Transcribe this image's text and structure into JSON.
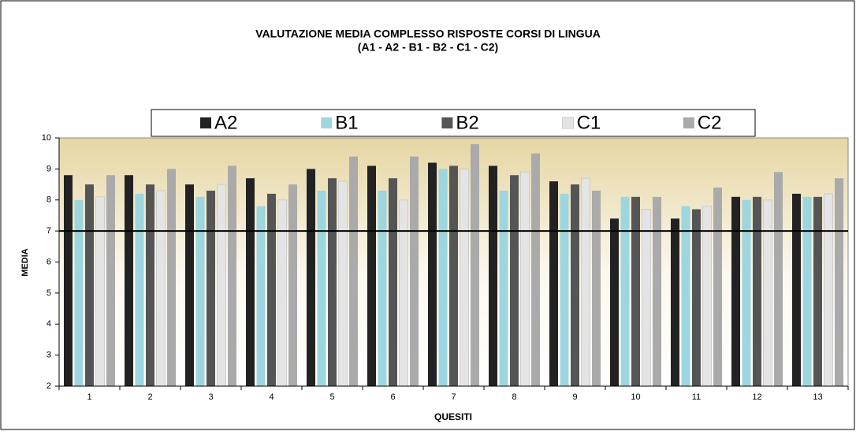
{
  "chart_data": {
    "type": "bar",
    "title": "VALUTAZIONE MEDIA COMPLESSO RISPOSTE CORSI DI LINGUA",
    "subtitle": "(A1   - A2 - B1 - B2 - C1 - C2)",
    "y_label": "MEDIA",
    "x_label": "QUESITI",
    "categories": [
      "1",
      "2",
      "3",
      "4",
      "5",
      "6",
      "7",
      "8",
      "9",
      "10",
      "11",
      "12",
      "13"
    ],
    "series": [
      {
        "name": "A2",
        "color": "#222222",
        "values": [
          8.8,
          8.8,
          8.5,
          8.7,
          9.0,
          9.1,
          9.2,
          9.1,
          8.6,
          7.4,
          7.4,
          8.1,
          8.2
        ]
      },
      {
        "name": "B1",
        "color": "#9dd6de",
        "values": [
          8.0,
          8.2,
          8.1,
          7.8,
          8.3,
          8.3,
          9.0,
          8.3,
          8.2,
          8.1,
          7.8,
          8.0,
          8.1
        ]
      },
      {
        "name": "B2",
        "color": "#555555",
        "values": [
          8.5,
          8.5,
          8.3,
          8.2,
          8.7,
          8.7,
          9.1,
          8.8,
          8.5,
          8.1,
          7.7,
          8.1,
          8.1
        ]
      },
      {
        "name": "C1",
        "color": "#e4e4e4",
        "values": [
          8.1,
          8.3,
          8.5,
          8.0,
          8.6,
          8.0,
          9.0,
          8.9,
          8.7,
          7.7,
          7.8,
          8.0,
          8.2
        ]
      },
      {
        "name": "C2",
        "color": "#aaaaaa",
        "values": [
          8.8,
          9.0,
          9.1,
          8.5,
          9.4,
          9.4,
          9.8,
          9.5,
          8.3,
          8.1,
          8.4,
          8.9,
          8.7
        ]
      }
    ],
    "ylim": [
      2,
      10
    ],
    "yticks": [
      2,
      3,
      4,
      5,
      6,
      7,
      8,
      9,
      10
    ],
    "reference_line": 7,
    "legend": "top"
  }
}
